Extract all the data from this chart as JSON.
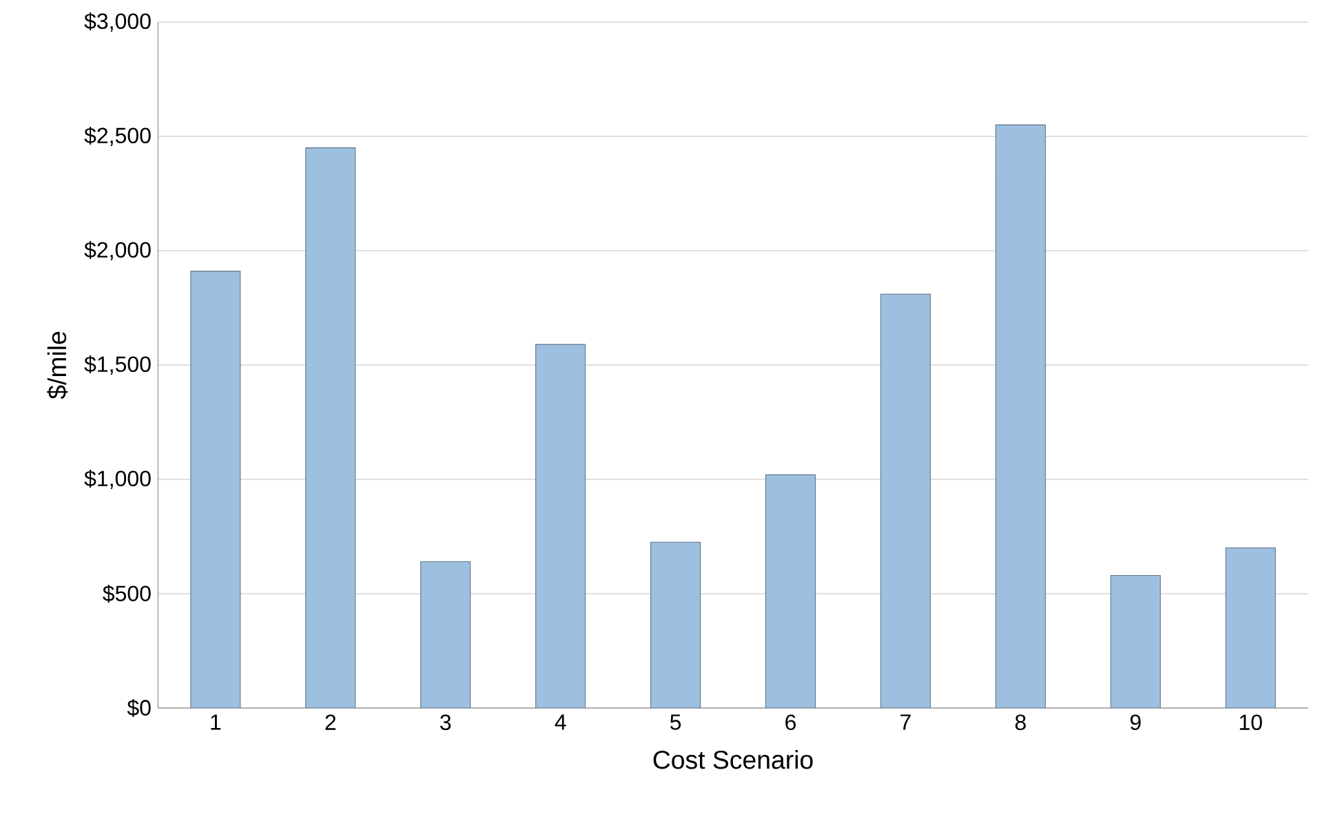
{
  "chart_data": {
    "type": "bar",
    "xlabel": "Cost Scenario",
    "ylabel": "$/mile",
    "categories": [
      "1",
      "2",
      "3",
      "4",
      "5",
      "6",
      "7",
      "8",
      "9",
      "10"
    ],
    "values": [
      1910,
      2450,
      640,
      1590,
      725,
      1020,
      1810,
      2550,
      580,
      700
    ],
    "color": "#9dbfe0",
    "ylim": [
      0,
      3000
    ],
    "yticks": [
      {
        "value": 0,
        "label": "$0"
      },
      {
        "value": 500,
        "label": "$500"
      },
      {
        "value": 1000,
        "label": "$1,000"
      },
      {
        "value": 1500,
        "label": "$1,500"
      },
      {
        "value": 2000,
        "label": "$2,000"
      },
      {
        "value": 2500,
        "label": "$2,500"
      },
      {
        "value": 3000,
        "label": "$3,000"
      }
    ],
    "grid": "y"
  }
}
